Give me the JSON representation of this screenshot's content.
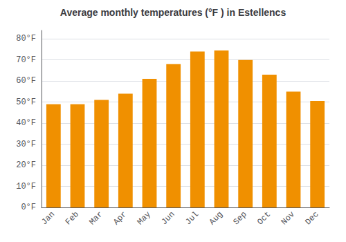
{
  "chart_data": {
    "type": "bar",
    "title": "Average monthly temperatures (°F ) in Estellencs",
    "categories": [
      "Jan",
      "Feb",
      "Mar",
      "Apr",
      "May",
      "Jun",
      "Jul",
      "Aug",
      "Sep",
      "Oct",
      "Nov",
      "Dec"
    ],
    "values": [
      49,
      49,
      51,
      54,
      61,
      68,
      74,
      74.5,
      70,
      63,
      55,
      50.5
    ],
    "color": "#F09000",
    "ylim": [
      0,
      84
    ],
    "yticks": [
      {
        "value": 0,
        "label": "0°F"
      },
      {
        "value": 10,
        "label": "10°F"
      },
      {
        "value": 20,
        "label": "20°F"
      },
      {
        "value": 30,
        "label": "30°F"
      },
      {
        "value": 40,
        "label": "40°F"
      },
      {
        "value": 50,
        "label": "50°F"
      },
      {
        "value": 60,
        "label": "60°F"
      },
      {
        "value": 70,
        "label": "70°F"
      },
      {
        "value": 80,
        "label": "80°F"
      }
    ],
    "grid": true
  }
}
